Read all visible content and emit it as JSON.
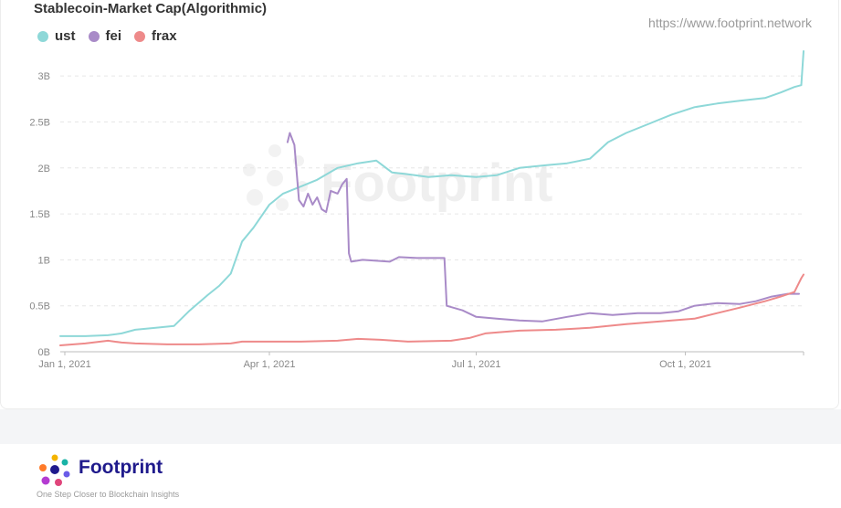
{
  "watermark": {
    "url": "https://www.footprint.network",
    "brand": "Footprint"
  },
  "footer": {
    "brand": "Footprint",
    "tagline": "One Step Closer to Blockchain Insights"
  },
  "chart_data": {
    "type": "line",
    "title": "Stablecoin-Market Cap(Algorithmic)",
    "xlabel": "",
    "ylabel": "",
    "x_range": [
      "2020-12-30",
      "2021-11-22"
    ],
    "ylim": [
      0,
      3.2
    ],
    "y_unit": "B",
    "y_ticks": [
      0,
      0.5,
      1,
      1.5,
      2,
      2.5,
      3
    ],
    "y_tick_labels": [
      "0B",
      "0.5B",
      "1B",
      "1.5B",
      "2B",
      "2.5B",
      "3B"
    ],
    "x_ticks": [
      "2021-01-01",
      "2021-04-01",
      "2021-07-01",
      "2021-10-01"
    ],
    "x_tick_labels": [
      "Jan 1, 2021",
      "Apr 1, 2021",
      "Jul 1, 2021",
      "Oct 1, 2021"
    ],
    "grid": true,
    "legend_position": "top-left",
    "series": [
      {
        "name": "ust",
        "color": "#8ed8d8",
        "points": [
          [
            "2020-12-30",
            0.17
          ],
          [
            "2021-01-10",
            0.17
          ],
          [
            "2021-01-20",
            0.18
          ],
          [
            "2021-01-26",
            0.2
          ],
          [
            "2021-02-01",
            0.24
          ],
          [
            "2021-02-10",
            0.26
          ],
          [
            "2021-02-18",
            0.28
          ],
          [
            "2021-02-25",
            0.45
          ],
          [
            "2021-03-05",
            0.62
          ],
          [
            "2021-03-10",
            0.72
          ],
          [
            "2021-03-15",
            0.85
          ],
          [
            "2021-03-20",
            1.2
          ],
          [
            "2021-03-25",
            1.35
          ],
          [
            "2021-04-01",
            1.6
          ],
          [
            "2021-04-07",
            1.72
          ],
          [
            "2021-04-15",
            1.8
          ],
          [
            "2021-04-22",
            1.87
          ],
          [
            "2021-05-01",
            2.0
          ],
          [
            "2021-05-10",
            2.05
          ],
          [
            "2021-05-18",
            2.08
          ],
          [
            "2021-05-25",
            1.95
          ],
          [
            "2021-06-01",
            1.93
          ],
          [
            "2021-06-10",
            1.9
          ],
          [
            "2021-06-20",
            1.92
          ],
          [
            "2021-07-01",
            1.9
          ],
          [
            "2021-07-10",
            1.92
          ],
          [
            "2021-07-20",
            2.0
          ],
          [
            "2021-08-01",
            2.03
          ],
          [
            "2021-08-10",
            2.05
          ],
          [
            "2021-08-20",
            2.1
          ],
          [
            "2021-08-28",
            2.28
          ],
          [
            "2021-09-05",
            2.38
          ],
          [
            "2021-09-15",
            2.48
          ],
          [
            "2021-09-25",
            2.58
          ],
          [
            "2021-10-05",
            2.66
          ],
          [
            "2021-10-15",
            2.7
          ],
          [
            "2021-10-25",
            2.73
          ],
          [
            "2021-11-05",
            2.76
          ],
          [
            "2021-11-12",
            2.82
          ],
          [
            "2021-11-18",
            2.88
          ],
          [
            "2021-11-21",
            2.9
          ],
          [
            "2021-11-22",
            3.27
          ]
        ]
      },
      {
        "name": "fei",
        "color": "#a98bc8",
        "points": [
          [
            "2021-04-09",
            2.28
          ],
          [
            "2021-04-10",
            2.38
          ],
          [
            "2021-04-12",
            2.25
          ],
          [
            "2021-04-14",
            1.65
          ],
          [
            "2021-04-16",
            1.58
          ],
          [
            "2021-04-18",
            1.72
          ],
          [
            "2021-04-20",
            1.6
          ],
          [
            "2021-04-22",
            1.68
          ],
          [
            "2021-04-24",
            1.55
          ],
          [
            "2021-04-26",
            1.52
          ],
          [
            "2021-04-28",
            1.75
          ],
          [
            "2021-05-01",
            1.72
          ],
          [
            "2021-05-03",
            1.82
          ],
          [
            "2021-05-05",
            1.88
          ],
          [
            "2021-05-06",
            1.07
          ],
          [
            "2021-05-07",
            0.98
          ],
          [
            "2021-05-12",
            1.0
          ],
          [
            "2021-05-18",
            0.99
          ],
          [
            "2021-05-24",
            0.98
          ],
          [
            "2021-05-28",
            1.03
          ],
          [
            "2021-06-05",
            1.02
          ],
          [
            "2021-06-12",
            1.02
          ],
          [
            "2021-06-17",
            1.02
          ],
          [
            "2021-06-18",
            0.5
          ],
          [
            "2021-06-25",
            0.45
          ],
          [
            "2021-07-01",
            0.38
          ],
          [
            "2021-07-10",
            0.36
          ],
          [
            "2021-07-20",
            0.34
          ],
          [
            "2021-07-30",
            0.33
          ],
          [
            "2021-08-10",
            0.38
          ],
          [
            "2021-08-20",
            0.42
          ],
          [
            "2021-08-30",
            0.4
          ],
          [
            "2021-09-10",
            0.42
          ],
          [
            "2021-09-20",
            0.42
          ],
          [
            "2021-09-28",
            0.44
          ],
          [
            "2021-10-05",
            0.5
          ],
          [
            "2021-10-15",
            0.53
          ],
          [
            "2021-10-25",
            0.52
          ],
          [
            "2021-11-01",
            0.55
          ],
          [
            "2021-11-08",
            0.6
          ],
          [
            "2021-11-15",
            0.63
          ],
          [
            "2021-11-20",
            0.63
          ]
        ]
      },
      {
        "name": "frax",
        "color": "#ee8a8a",
        "points": [
          [
            "2020-12-30",
            0.07
          ],
          [
            "2021-01-10",
            0.09
          ],
          [
            "2021-01-20",
            0.12
          ],
          [
            "2021-01-26",
            0.1
          ],
          [
            "2021-02-01",
            0.09
          ],
          [
            "2021-02-15",
            0.08
          ],
          [
            "2021-03-01",
            0.08
          ],
          [
            "2021-03-15",
            0.09
          ],
          [
            "2021-03-20",
            0.11
          ],
          [
            "2021-04-01",
            0.11
          ],
          [
            "2021-04-15",
            0.11
          ],
          [
            "2021-05-01",
            0.12
          ],
          [
            "2021-05-10",
            0.14
          ],
          [
            "2021-05-20",
            0.13
          ],
          [
            "2021-06-01",
            0.11
          ],
          [
            "2021-06-20",
            0.12
          ],
          [
            "2021-06-28",
            0.15
          ],
          [
            "2021-07-05",
            0.2
          ],
          [
            "2021-07-20",
            0.23
          ],
          [
            "2021-08-05",
            0.24
          ],
          [
            "2021-08-20",
            0.26
          ],
          [
            "2021-09-05",
            0.3
          ],
          [
            "2021-09-20",
            0.33
          ],
          [
            "2021-10-05",
            0.36
          ],
          [
            "2021-10-15",
            0.42
          ],
          [
            "2021-10-25",
            0.48
          ],
          [
            "2021-11-05",
            0.55
          ],
          [
            "2021-11-12",
            0.6
          ],
          [
            "2021-11-18",
            0.65
          ],
          [
            "2021-11-21",
            0.8
          ],
          [
            "2021-11-22",
            0.84
          ]
        ]
      }
    ]
  }
}
